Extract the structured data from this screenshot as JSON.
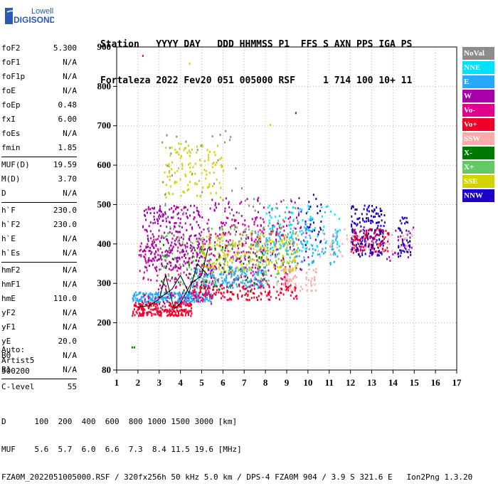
{
  "logo": {
    "line1": "Lowell",
    "line2": "DIGISONDE"
  },
  "header": {
    "labels": "Station   YYYY DAY   DDD HHMMSS P1  FFS S AXN PPS IGA PS",
    "values": "Fortaleza 2022 Fev20 051 005000 RSF     1 714 100 10+ 11"
  },
  "params": {
    "group1": [
      {
        "label": "foF2",
        "value": "5.300"
      },
      {
        "label": "foF1",
        "value": "N/A"
      },
      {
        "label": "foF1p",
        "value": "N/A"
      },
      {
        "label": "foE",
        "value": "N/A"
      },
      {
        "label": "foEp",
        "value": "0.48"
      },
      {
        "label": "fxI",
        "value": "6.00"
      },
      {
        "label": "foEs",
        "value": "N/A"
      },
      {
        "label": "fmin",
        "value": "1.85"
      }
    ],
    "group2": [
      {
        "label": "MUF(D)",
        "value": "19.59"
      },
      {
        "label": "M(D)",
        "value": "3.70"
      },
      {
        "label": "D",
        "value": "N/A"
      }
    ],
    "group3": [
      {
        "label": "h`F",
        "value": "230.0"
      },
      {
        "label": "h`F2",
        "value": "230.0"
      },
      {
        "label": "h`E",
        "value": "N/A"
      },
      {
        "label": "h`Es",
        "value": "N/A"
      }
    ],
    "group4": [
      {
        "label": "hmF2",
        "value": "N/A"
      },
      {
        "label": "hmF1",
        "value": "N/A"
      },
      {
        "label": "hmE",
        "value": "110.0"
      },
      {
        "label": "yF2",
        "value": "N/A"
      },
      {
        "label": "yF1",
        "value": "N/A"
      },
      {
        "label": "yE",
        "value": "20.0"
      },
      {
        "label": "B0",
        "value": "N/A"
      },
      {
        "label": "B1",
        "value": "N/A"
      }
    ],
    "group5": [
      {
        "label": "C-level",
        "value": "55"
      }
    ]
  },
  "auto": {
    "line1": "Auto:",
    "line2": "Artist5",
    "line3": "500200"
  },
  "legend": [
    {
      "label": "NoVal",
      "color": "#8c8c8c"
    },
    {
      "label": "NNE",
      "color": "#00e0ff"
    },
    {
      "label": "E",
      "color": "#29a8ff"
    },
    {
      "label": "W",
      "color": "#a800a8"
    },
    {
      "label": "Vo-",
      "color": "#e0008c"
    },
    {
      "label": "Vo+",
      "color": "#f0002a"
    },
    {
      "label": "SSW",
      "color": "#ffaaaa"
    },
    {
      "label": "X-",
      "color": "#007800"
    },
    {
      "label": "X+",
      "color": "#64c864"
    },
    {
      "label": "SSE",
      "color": "#d2d200"
    },
    {
      "label": "NNW",
      "color": "#1a00c8"
    }
  ],
  "footer": {
    "line1": "D      100  200  400  600  800 1000 1500 3000 [km]",
    "line2": "MUF    5.6  5.7  6.0  6.6  7.3  8.4 11.5 19.6 [MHz]",
    "line3": "FZA0M_2022051005000.RSF / 320fx256h 50 kHz 5.0 km / DPS-4 FZA0M 904 / 3.9 S 321.6 E   Ion2Png 1.3.20"
  },
  "chart_data": {
    "type": "scatter",
    "xlim": [
      1,
      17
    ],
    "ylim": [
      80,
      900
    ],
    "x_ticks": [
      1,
      2,
      3,
      4,
      5,
      6,
      7,
      8,
      9,
      10,
      11,
      12,
      13,
      14,
      15,
      16,
      17
    ],
    "y_ticks": [
      80,
      200,
      300,
      400,
      500,
      600,
      700,
      800,
      900
    ],
    "grid": true,
    "legend_placement": "right",
    "traces": [
      {
        "name": "trace-1",
        "color": "#000000",
        "points": [
          [
            2.0,
            240
          ],
          [
            2.5,
            243
          ],
          [
            3.0,
            260
          ],
          [
            3.3,
            320
          ],
          [
            3.7,
            235
          ],
          [
            4.0,
            250
          ],
          [
            4.5,
            300
          ],
          [
            5.0,
            320
          ],
          [
            5.3,
            390
          ]
        ]
      },
      {
        "name": "trace-2",
        "color": "#000000",
        "points": [
          [
            3.0,
            262
          ],
          [
            3.6,
            285
          ],
          [
            4.0,
            320
          ],
          [
            4.4,
            275
          ],
          [
            4.8,
            350
          ],
          [
            5.3,
            320
          ]
        ]
      }
    ],
    "clusters": [
      {
        "color": "#29a8ff",
        "x": [
          1.7,
          5.5
        ],
        "y": [
          255,
          280
        ],
        "n": 260
      },
      {
        "color": "#29a8ff",
        "x": [
          4.5,
          8.0
        ],
        "y": [
          290,
          345
        ],
        "n": 220
      },
      {
        "color": "#29a8ff",
        "x": [
          7.5,
          11.5
        ],
        "y": [
          350,
          440
        ],
        "n": 120
      },
      {
        "color": "#f0002a",
        "x": [
          1.7,
          4.5
        ],
        "y": [
          220,
          255
        ],
        "n": 220
      },
      {
        "color": "#f0002a",
        "x": [
          4.5,
          9.5
        ],
        "y": [
          260,
          300
        ],
        "n": 160
      },
      {
        "color": "#f0002a",
        "x": [
          12.0,
          13.8
        ],
        "y": [
          380,
          440
        ],
        "n": 120
      },
      {
        "color": "#e0008c",
        "x": [
          2.0,
          5.5
        ],
        "y": [
          250,
          420
        ],
        "n": 220
      },
      {
        "color": "#e0008c",
        "x": [
          5.5,
          9.0
        ],
        "y": [
          300,
          470
        ],
        "n": 150
      },
      {
        "color": "#a800a8",
        "x": [
          2.2,
          5.0
        ],
        "y": [
          340,
          500
        ],
        "n": 260
      },
      {
        "color": "#a800a8",
        "x": [
          5.0,
          10.0
        ],
        "y": [
          330,
          520
        ],
        "n": 140
      },
      {
        "color": "#a800a8",
        "x": [
          12.0,
          15.0
        ],
        "y": [
          360,
          450
        ],
        "n": 50
      },
      {
        "color": "#d2d200",
        "x": [
          5.0,
          9.5
        ],
        "y": [
          330,
          430
        ],
        "n": 240
      },
      {
        "color": "#d2d200",
        "x": [
          3.2,
          6.0
        ],
        "y": [
          520,
          660
        ],
        "n": 120
      },
      {
        "color": "#64c864",
        "x": [
          3.0,
          9.5
        ],
        "y": [
          300,
          450
        ],
        "n": 150
      },
      {
        "color": "#007800",
        "x": [
          3.0,
          8.0
        ],
        "y": [
          280,
          400
        ],
        "n": 60
      },
      {
        "color": "#1a00c8",
        "x": [
          12.0,
          13.6
        ],
        "y": [
          370,
          500
        ],
        "n": 150
      },
      {
        "color": "#1a00c8",
        "x": [
          14.2,
          14.8
        ],
        "y": [
          370,
          470
        ],
        "n": 50
      },
      {
        "color": "#1a00c8",
        "x": [
          9.8,
          10.6
        ],
        "y": [
          400,
          530
        ],
        "n": 30
      },
      {
        "color": "#00e0ff",
        "x": [
          8.0,
          11.5
        ],
        "y": [
          380,
          500
        ],
        "n": 110
      },
      {
        "color": "#ffaaaa",
        "x": [
          8.5,
          10.5
        ],
        "y": [
          280,
          340
        ],
        "n": 60
      },
      {
        "color": "#ffaaaa",
        "x": [
          10.0,
          15.0
        ],
        "y": [
          370,
          440
        ],
        "n": 50
      },
      {
        "color": "#8c8c8c",
        "x": [
          3.0,
          7.0
        ],
        "y": [
          300,
          700
        ],
        "n": 60
      },
      {
        "color": "#8c8c8c",
        "x": [
          7.0,
          9.5
        ],
        "y": [
          400,
          520
        ],
        "n": 40
      }
    ],
    "isolated_points": [
      {
        "x": 2.2,
        "y": 880,
        "color": "#e0008c"
      },
      {
        "x": 9.4,
        "y": 735,
        "color": "#a800a8"
      },
      {
        "x": 8.2,
        "y": 705,
        "color": "#d2d200"
      },
      {
        "x": 1.7,
        "y": 140,
        "color": "#007800"
      },
      {
        "x": 1.8,
        "y": 140,
        "color": "#007800"
      },
      {
        "x": 4.4,
        "y": 860,
        "color": "#d2d200"
      }
    ]
  }
}
